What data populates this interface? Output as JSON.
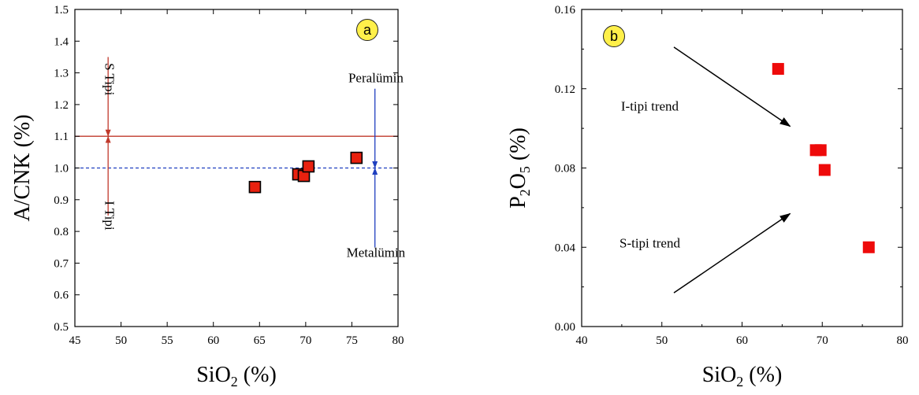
{
  "chart_data": [
    {
      "type": "scatter",
      "badge": "a",
      "xlabel": "SiO",
      "xlabel_sub": "2",
      "xlabel_unit": " (%)",
      "ylabel": "A/CNK (%)",
      "xlim": [
        45,
        80
      ],
      "ylim": [
        0.5,
        1.5
      ],
      "xticks": [
        "45",
        "50",
        "55",
        "60",
        "65",
        "70",
        "75",
        "80"
      ],
      "yticks": [
        "0.5",
        "0.6",
        "0.7",
        "0.8",
        "0.9",
        "1.0",
        "1.1",
        "1.2",
        "1.3",
        "1.4",
        "1.5"
      ],
      "marker_color": "#e8210f",
      "points": [
        {
          "x": 64.5,
          "y": 0.94
        },
        {
          "x": 69.2,
          "y": 0.98
        },
        {
          "x": 69.8,
          "y": 0.975
        },
        {
          "x": 70.3,
          "y": 1.005
        },
        {
          "x": 75.5,
          "y": 1.032
        }
      ],
      "reference_lines": [
        {
          "y": 1.1,
          "style": "solid",
          "color": "#c0392b"
        },
        {
          "y": 1.0,
          "style": "dashed",
          "color": "#1f3fbf"
        }
      ],
      "annotations": [
        {
          "text": "S Tipi",
          "x": 48.3,
          "y": 1.28,
          "rotate": true
        },
        {
          "text": "I Tipi",
          "x": 48.3,
          "y": 0.85,
          "rotate": true
        },
        {
          "text": "Peralümin",
          "x": 77.6,
          "y": 1.27,
          "rotate": false
        },
        {
          "text": "Metalümin",
          "x": 77.6,
          "y": 0.72,
          "rotate": false
        }
      ],
      "arrows": [
        {
          "x": 48.6,
          "y1": 1.35,
          "y2": 1.1,
          "color": "#c0392b"
        },
        {
          "x": 48.6,
          "y1": 0.85,
          "y2": 1.1,
          "color": "#c0392b"
        },
        {
          "x": 77.5,
          "y1": 1.25,
          "y2": 1.0,
          "color": "#1f3fbf"
        },
        {
          "x": 77.5,
          "y1": 0.75,
          "y2": 1.0,
          "color": "#1f3fbf"
        }
      ]
    },
    {
      "type": "scatter",
      "badge": "b",
      "xlabel": "SiO",
      "xlabel_sub": "2",
      "xlabel_unit": " (%)",
      "ylabel": "P",
      "ylabel_sub1": "2",
      "ylabel_mid": "O",
      "ylabel_sub2": "5",
      "ylabel_unit": " (%)",
      "xlim": [
        40,
        80
      ],
      "ylim": [
        0.0,
        0.16
      ],
      "xticks": [
        "40",
        "50",
        "60",
        "70",
        "80"
      ],
      "yticks": [
        "0.00",
        "0.04",
        "0.08",
        "0.12",
        "0.16"
      ],
      "marker_color": "#ee0a0a",
      "points": [
        {
          "x": 64.5,
          "y": 0.13
        },
        {
          "x": 69.2,
          "y": 0.089
        },
        {
          "x": 69.8,
          "y": 0.089
        },
        {
          "x": 70.3,
          "y": 0.079
        },
        {
          "x": 75.8,
          "y": 0.04
        }
      ],
      "annotations": [
        {
          "text": "I-tipi trend",
          "x": 48.5,
          "y": 0.109
        },
        {
          "text": "S-tipi trend",
          "x": 48.5,
          "y": 0.04
        }
      ],
      "arrows": [
        {
          "x1": 51.5,
          "y1": 0.141,
          "x2": 66.0,
          "y2": 0.101
        },
        {
          "x1": 51.5,
          "y1": 0.017,
          "x2": 66.0,
          "y2": 0.057
        }
      ]
    }
  ]
}
